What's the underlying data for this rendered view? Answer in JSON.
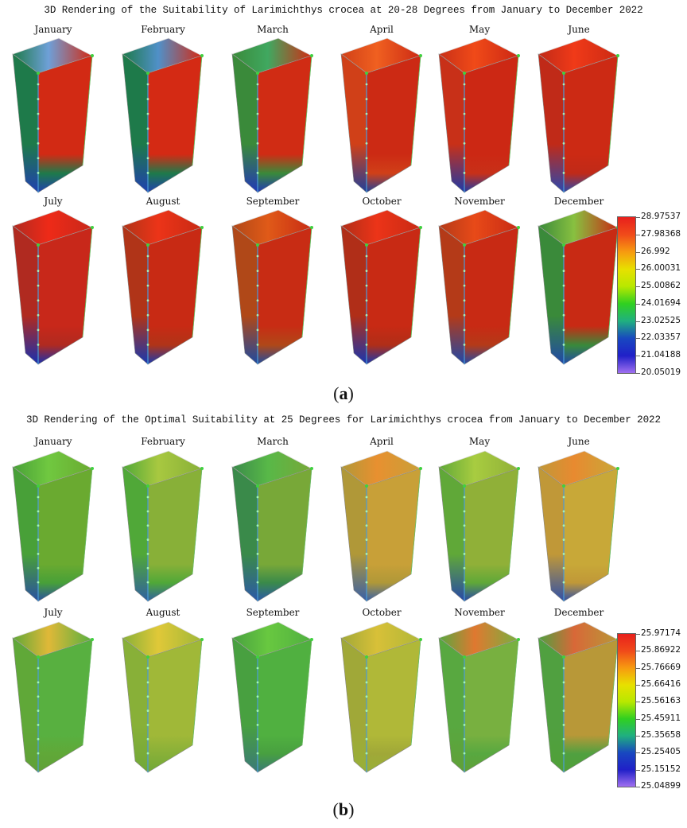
{
  "chart_data": [
    {
      "type": "heatmap",
      "title": "3D Rendering of the Suitability of Larimichthys crocea at 20-28 Degrees from January to December 2022",
      "caption_letter": "a",
      "months": [
        "January",
        "February",
        "March",
        "April",
        "May",
        "June",
        "July",
        "August",
        "September",
        "October",
        "November",
        "December"
      ],
      "colorbar": {
        "min": 20.05019,
        "max": 28.97537,
        "labels": [
          "28.97537",
          "27.98368",
          "26.992",
          "26.00031",
          "25.00862",
          "24.01694",
          "23.02525",
          "22.03357",
          "21.04188",
          "20.05019"
        ],
        "colors": [
          "#e8201c",
          "#f04a1a",
          "#f79a10",
          "#e8e000",
          "#b8e800",
          "#30d020",
          "#20b080",
          "#1848c0",
          "#2020c8",
          "#a070f0"
        ]
      },
      "panels": [
        {
          "month": "January",
          "top": "#6ea0d8",
          "face": "#d22a14",
          "bottom": "#2040b0",
          "left": "#1e7a4a"
        },
        {
          "month": "February",
          "top": "#5090c8",
          "face": "#d42a14",
          "bottom": "#2040b0",
          "left": "#1e7a4a"
        },
        {
          "month": "March",
          "top": "#40a860",
          "face": "#d02c14",
          "bottom": "#2238b8",
          "left": "#3a8a3a"
        },
        {
          "month": "April",
          "top": "#f06020",
          "face": "#cc2a14",
          "bottom": "#20409a",
          "left": "#d04018"
        },
        {
          "month": "May",
          "top": "#f04a18",
          "face": "#cc2814",
          "bottom": "#1e3aa8",
          "left": "#c83018"
        },
        {
          "month": "June",
          "top": "#f03a18",
          "face": "#cc2a14",
          "bottom": "#2a48b0",
          "left": "#c02a18"
        },
        {
          "month": "July",
          "top": "#ee2a18",
          "face": "#c8281a",
          "bottom": "#1830b0",
          "left": "#b02a20"
        },
        {
          "month": "August",
          "top": "#ec3418",
          "face": "#c82a14",
          "bottom": "#1838b0",
          "left": "#b03418"
        },
        {
          "month": "September",
          "top": "#e05a18",
          "face": "#c82c14",
          "bottom": "#1e4aa0",
          "left": "#b04818"
        },
        {
          "month": "October",
          "top": "#ec3418",
          "face": "#c82a14",
          "bottom": "#1836b0",
          "left": "#b02e18"
        },
        {
          "month": "November",
          "top": "#e84a18",
          "face": "#c82a14",
          "bottom": "#2048a8",
          "left": "#b43a18"
        },
        {
          "month": "December",
          "top": "#88c040",
          "face": "#c82a14",
          "bottom": "#2048a8",
          "left": "#3a8a3a"
        }
      ]
    },
    {
      "type": "heatmap",
      "title": "3D Rendering of the Optimal Suitability at 25 Degrees for Larimichthys crocea from January to December 2022",
      "caption_letter": "b",
      "months": [
        "January",
        "February",
        "March",
        "April",
        "May",
        "June",
        "July",
        "August",
        "September",
        "October",
        "November",
        "December"
      ],
      "colorbar": {
        "min": 25.04899,
        "max": 25.97174,
        "labels": [
          "25.97174",
          "25.86922",
          "25.76669",
          "25.66416",
          "25.56163",
          "25.45911",
          "25.35658",
          "25.25405",
          "25.15152",
          "25.04899"
        ],
        "colors": [
          "#e8201c",
          "#f04a1a",
          "#f79a10",
          "#e8e000",
          "#b8e800",
          "#30d020",
          "#20b080",
          "#1848c0",
          "#2020c8",
          "#a070f0"
        ]
      },
      "panels": [
        {
          "month": "January",
          "top": "#70c840",
          "face": "#6aaa30",
          "bottom": "#2a50a0",
          "left": "#48a038"
        },
        {
          "month": "February",
          "top": "#a8c840",
          "face": "#88b038",
          "bottom": "#3060a0",
          "left": "#50a838"
        },
        {
          "month": "March",
          "top": "#58b848",
          "face": "#78a838",
          "bottom": "#2c58a8",
          "left": "#3a8a4a"
        },
        {
          "month": "April",
          "top": "#e89030",
          "face": "#c8a038",
          "bottom": "#3860a8",
          "left": "#b09838"
        },
        {
          "month": "May",
          "top": "#a8cc40",
          "face": "#90b038",
          "bottom": "#2848a8",
          "left": "#60a838"
        },
        {
          "month": "June",
          "top": "#e88a30",
          "face": "#c8a838",
          "bottom": "#3050a8",
          "left": "#c09838"
        },
        {
          "month": "July",
          "top": "#e0b838",
          "face": "#58b040",
          "bottom": "#60a038",
          "left": "#60a838"
        },
        {
          "month": "August",
          "top": "#e0c838",
          "face": "#a0b838",
          "bottom": "#70a838",
          "left": "#88b038"
        },
        {
          "month": "September",
          "top": "#68c840",
          "face": "#50b040",
          "bottom": "#3a7a78",
          "left": "#48a040"
        },
        {
          "month": "October",
          "top": "#d8c038",
          "face": "#b0b838",
          "bottom": "#98b038",
          "left": "#a0a838"
        },
        {
          "month": "November",
          "top": "#e07830",
          "face": "#78b040",
          "bottom": "#60a038",
          "left": "#58a840"
        },
        {
          "month": "December",
          "top": "#d86838",
          "face": "#b89838",
          "bottom": "#50a038",
          "left": "#50a040"
        }
      ]
    }
  ]
}
